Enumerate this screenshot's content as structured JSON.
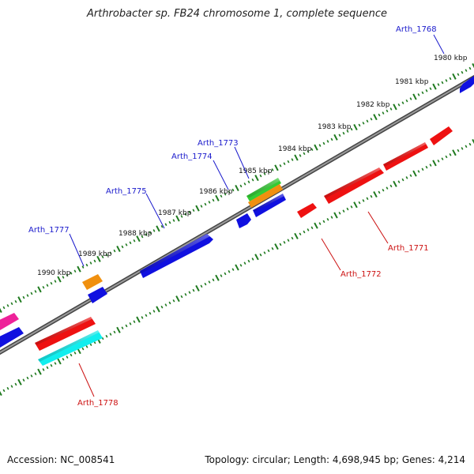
{
  "title": "Arthrobacter sp. FB24 chromosome 1, complete sequence",
  "footer": {
    "accession": "Accession: NC_008541",
    "summary": "Topology: circular; Length: 4,698,945 bp; Genes: 4,214"
  },
  "colors": {
    "backbone": "#6e6e6e",
    "tick": "#1f7a1f",
    "label_forward": "#1a1acc",
    "label_reverse": "#cc1111",
    "blue": "#1010e0",
    "orange": "#f0900f",
    "green": "#33cc33",
    "red": "#ee1111",
    "cyan": "#11eeee",
    "magenta": "#ee2299"
  },
  "kbp_labels": [
    "1980 kbp",
    "1981 kbp",
    "1982 kbp",
    "1983 kbp",
    "1984 kbp",
    "1985 kbp",
    "1986 kbp",
    "1987 kbp",
    "1988 kbp",
    "1989 kbp",
    "1990 kbp"
  ],
  "gene_labels_forward": [
    "Arth_1768",
    "Arth_1773",
    "Arth_1774",
    "Arth_1775",
    "Arth_1777"
  ],
  "gene_labels_reverse": [
    "Arth_1771",
    "Arth_1772",
    "Arth_1778"
  ]
}
